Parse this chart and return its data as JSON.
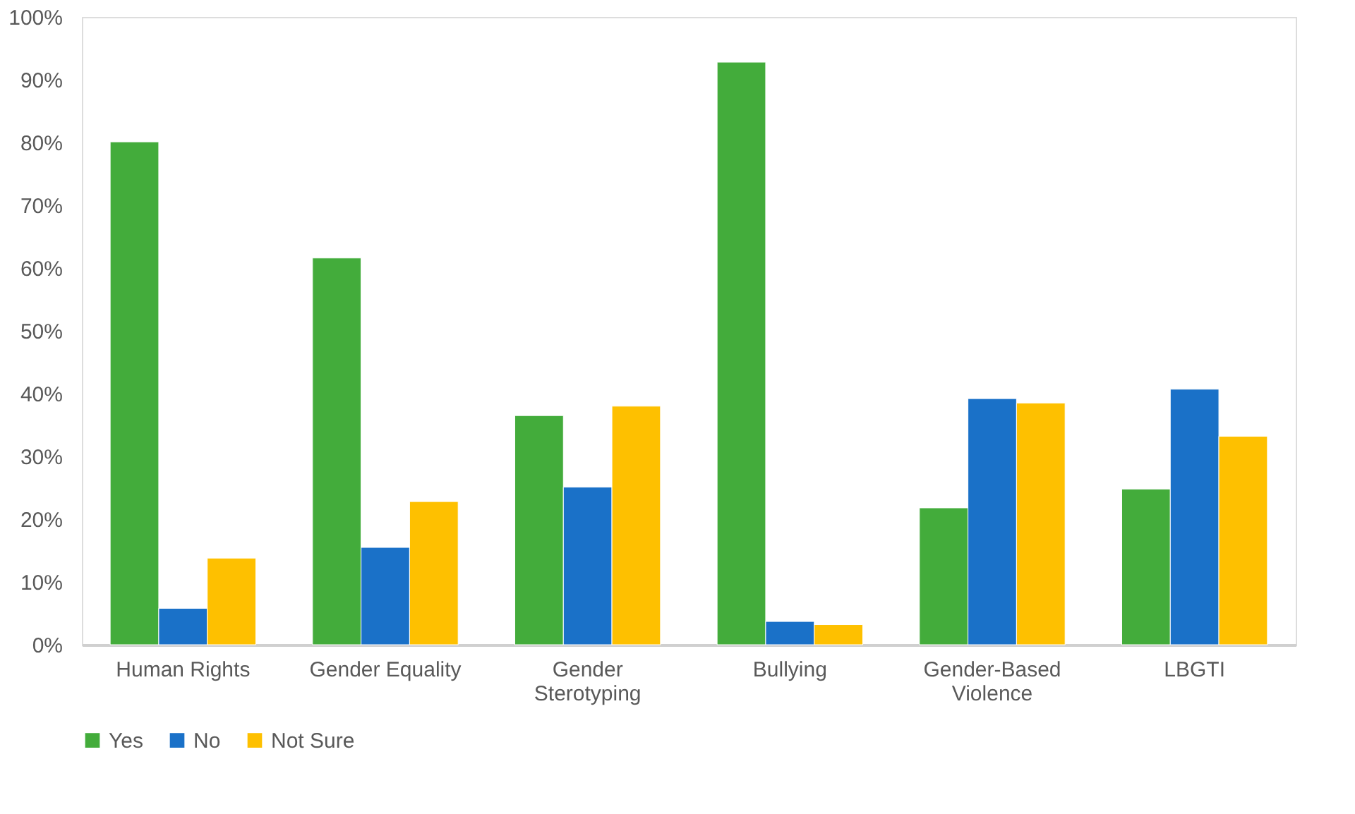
{
  "chart_data": {
    "type": "bar",
    "categories": [
      "Human Rights",
      "Gender Equality",
      "Gender Sterotyping",
      "Bullying",
      "Gender-Based Violence",
      "LBGTI"
    ],
    "series": [
      {
        "name": "Yes",
        "color": "#43ac3b",
        "values": [
          80.1,
          61.6,
          36.5,
          92.8,
          21.8,
          24.8
        ]
      },
      {
        "name": "No",
        "color": "#1a71c8",
        "values": [
          5.8,
          15.5,
          25.1,
          3.7,
          39.2,
          40.7
        ]
      },
      {
        "name": "Not Sure",
        "color": "#fec000",
        "values": [
          13.8,
          22.8,
          38.0,
          3.2,
          38.5,
          33.2
        ]
      }
    ],
    "ylim": [
      0,
      100
    ],
    "yticks": [
      {
        "value": 0,
        "label": "0%"
      },
      {
        "value": 10,
        "label": "10%"
      },
      {
        "value": 20,
        "label": "20%"
      },
      {
        "value": 30,
        "label": "30%"
      },
      {
        "value": 40,
        "label": "40%"
      },
      {
        "value": 50,
        "label": "50%"
      },
      {
        "value": 60,
        "label": "60%"
      },
      {
        "value": 70,
        "label": "70%"
      },
      {
        "value": 80,
        "label": "80%"
      },
      {
        "value": 90,
        "label": "90%"
      },
      {
        "value": 100,
        "label": "100%"
      }
    ],
    "grid": false,
    "legend": "bottom"
  }
}
